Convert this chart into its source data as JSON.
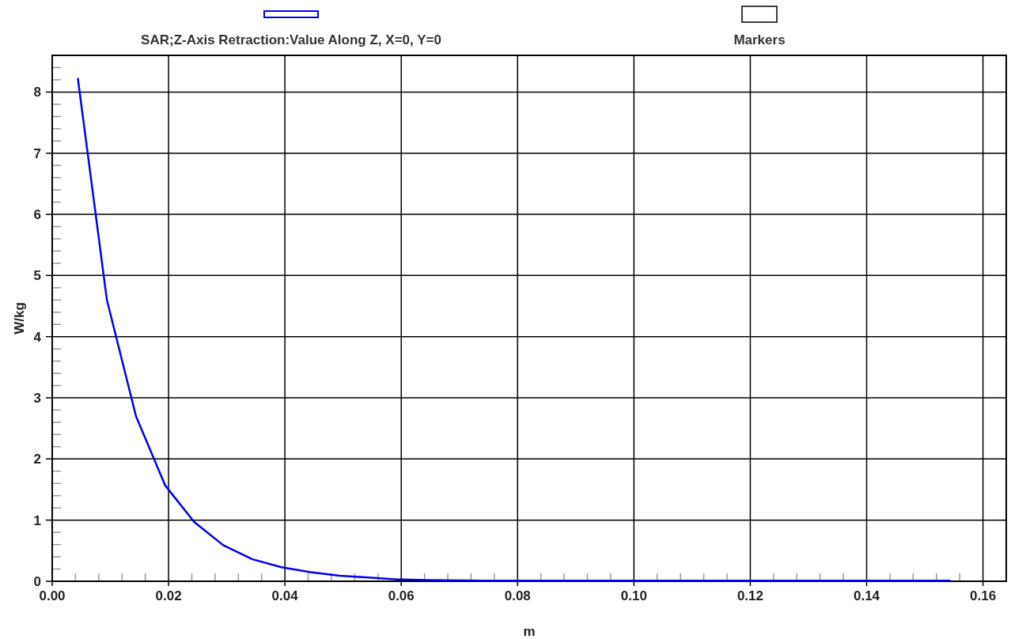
{
  "chart_data": {
    "type": "line",
    "xlabel": "m",
    "ylabel": "W/kg",
    "x": [
      0.0044,
      0.0094,
      0.0144,
      0.0194,
      0.0244,
      0.0294,
      0.0344,
      0.0394,
      0.0444,
      0.0494,
      0.0544,
      0.0594,
      0.0644,
      0.0744,
      0.0844,
      0.0944,
      0.1044,
      0.1144,
      0.1244,
      0.1344,
      0.1444,
      0.1544
    ],
    "series": [
      {
        "name": "SAR;Z-Axis Retraction:Value Along Z, X=0, Y=0",
        "color": "#0000ee",
        "values": [
          8.23,
          4.6,
          2.7,
          1.57,
          0.97,
          0.59,
          0.36,
          0.23,
          0.15,
          0.09,
          0.06,
          0.03,
          0.02,
          0.01,
          0.01,
          0.01,
          0.01,
          0.01,
          0.01,
          0.01,
          0.01,
          0.01
        ]
      }
    ],
    "annotations": [
      "Markers"
    ],
    "xlim": [
      0,
      0.164
    ],
    "ylim": [
      0,
      8.6
    ],
    "xticks": [
      {
        "value": 0,
        "label": "0.00"
      },
      {
        "value": 0.02,
        "label": "0.02"
      },
      {
        "value": 0.04,
        "label": "0.04"
      },
      {
        "value": 0.06,
        "label": "0.06"
      },
      {
        "value": 0.08,
        "label": "0.08"
      },
      {
        "value": 0.1,
        "label": "0.10"
      },
      {
        "value": 0.12,
        "label": "0.12"
      },
      {
        "value": 0.14,
        "label": "0.14"
      },
      {
        "value": 0.16,
        "label": "0.16"
      }
    ],
    "yticks": [
      0,
      1,
      2,
      3,
      4,
      5,
      6,
      7,
      8
    ],
    "grid": true,
    "legend": "top",
    "marker": "none",
    "line_style": "solid"
  }
}
